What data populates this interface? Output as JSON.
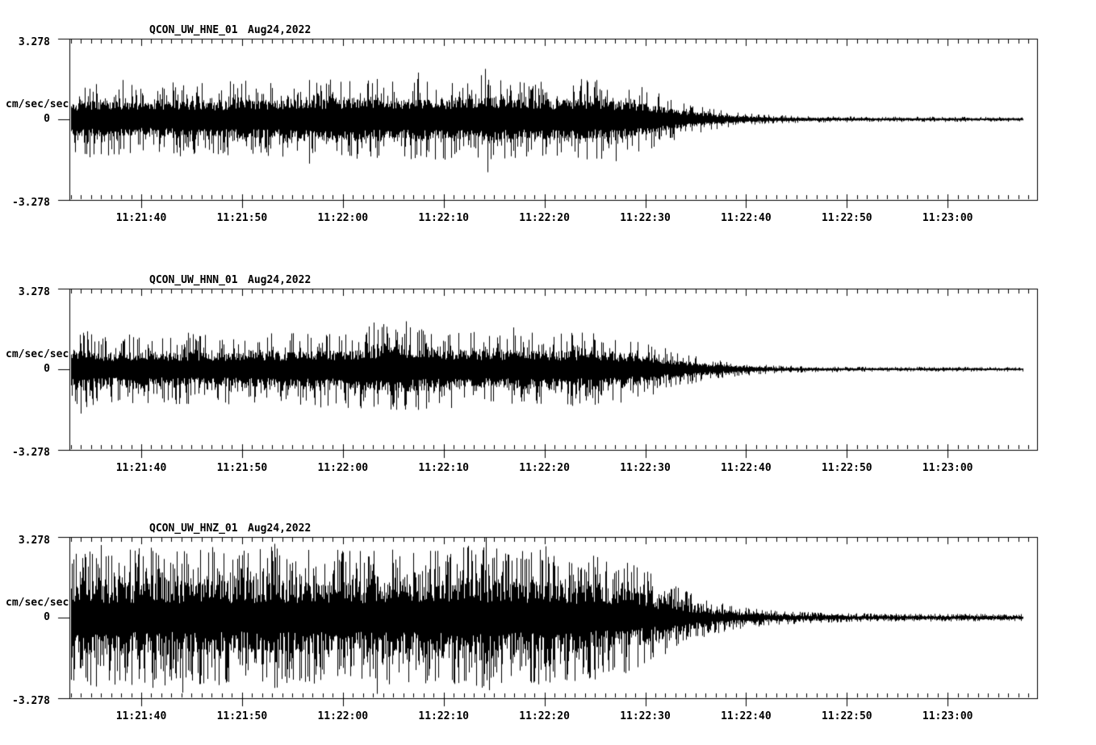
{
  "page": {
    "background": "#ffffff",
    "ink_color": "#000000"
  },
  "chart_data": {
    "type": "line",
    "kind": "three-component seismogram (acceleration waveforms)",
    "station": "QCON",
    "network": "UW",
    "location_code": "01",
    "date": "Aug24,2022",
    "grid": "off",
    "legend": "none",
    "y_axis": {
      "unit": "cm/sec/sec",
      "max_label": "3.278",
      "zero_label": "0",
      "min_label": "-3.278",
      "ylim": [
        -3.278,
        3.278
      ]
    },
    "x_axis": {
      "tick_labels": [
        "11:21:40",
        "11:21:50",
        "11:22:00",
        "11:22:10",
        "11:22:20",
        "11:22:30",
        "11:22:40",
        "11:22:50",
        "11:23:00"
      ],
      "minor_tick_seconds": 1,
      "major_tick_seconds": 10,
      "window_start": "11:21:33",
      "window_end": "11:23:09",
      "window_length_seconds": 96
    },
    "panels": [
      {
        "channel": "HNE",
        "title": "QCON_UW_HNE_01",
        "date": "Aug24,2022",
        "seed": 20220824,
        "trace_start_s": 0.15,
        "trace_end_s": 94.55,
        "texture": {
          "core": 0.45,
          "hair_prob": 0.4,
          "big_prob": 0.05
        },
        "envelope": [
          [
            0,
            1.35
          ],
          [
            2,
            1.55
          ],
          [
            5,
            1.45
          ],
          [
            8,
            1.35
          ],
          [
            11,
            1.55
          ],
          [
            14,
            1.45
          ],
          [
            17,
            1.65
          ],
          [
            20,
            1.55
          ],
          [
            23,
            1.75
          ],
          [
            26,
            1.65
          ],
          [
            29,
            1.8
          ],
          [
            32,
            1.6
          ],
          [
            35,
            1.75
          ],
          [
            38,
            1.65
          ],
          [
            41,
            1.9
          ],
          [
            44,
            1.7
          ],
          [
            47,
            1.6
          ],
          [
            50,
            1.7
          ],
          [
            53,
            1.6
          ],
          [
            56,
            1.45
          ],
          [
            58,
            1.15
          ],
          [
            60,
            0.85
          ],
          [
            62,
            0.6
          ],
          [
            64,
            0.42
          ],
          [
            66,
            0.3
          ],
          [
            68,
            0.22
          ],
          [
            70,
            0.17
          ],
          [
            74,
            0.13
          ],
          [
            80,
            0.11
          ],
          [
            96,
            0.1
          ]
        ],
        "spikes": [
          [
            5.3,
            1.6
          ],
          [
            23.8,
            -1.8
          ],
          [
            34.6,
            1.9
          ],
          [
            41.2,
            2.05
          ],
          [
            41.5,
            -2.15
          ],
          [
            54.2,
            -1.7
          ]
        ]
      },
      {
        "channel": "HNN",
        "title": "QCON_UW_HNN_01",
        "date": "Aug24,2022",
        "seed": 7151623,
        "trace_start_s": 0.15,
        "trace_end_s": 94.55,
        "texture": {
          "core": 0.42,
          "hair_prob": 0.4,
          "big_prob": 0.05
        },
        "envelope": [
          [
            0,
            1.7
          ],
          [
            1.5,
            1.8
          ],
          [
            3,
            1.35
          ],
          [
            6,
            1.45
          ],
          [
            9,
            1.35
          ],
          [
            12,
            1.5
          ],
          [
            15,
            1.4
          ],
          [
            18,
            1.55
          ],
          [
            21,
            1.45
          ],
          [
            24,
            1.6
          ],
          [
            27,
            1.5
          ],
          [
            30,
            1.85
          ],
          [
            33,
            1.9
          ],
          [
            36,
            1.6
          ],
          [
            39,
            1.7
          ],
          [
            42,
            1.55
          ],
          [
            45,
            1.65
          ],
          [
            48,
            1.5
          ],
          [
            51,
            1.55
          ],
          [
            54,
            1.4
          ],
          [
            57,
            1.2
          ],
          [
            59,
            0.9
          ],
          [
            61,
            0.65
          ],
          [
            63,
            0.48
          ],
          [
            65,
            0.35
          ],
          [
            67,
            0.26
          ],
          [
            69,
            0.19
          ],
          [
            72,
            0.14
          ],
          [
            78,
            0.11
          ],
          [
            96,
            0.09
          ]
        ],
        "spikes": [
          [
            1.1,
            -1.8
          ],
          [
            24.9,
            -1.55
          ],
          [
            30.2,
            1.9
          ],
          [
            33.4,
            1.95
          ],
          [
            44.0,
            1.7
          ]
        ]
      },
      {
        "channel": "HNZ",
        "title": "QCON_UW_HNZ_01",
        "date": "Aug24,2022",
        "seed": 90210331,
        "trace_start_s": 0.15,
        "trace_end_s": 94.55,
        "texture": {
          "core": 0.38,
          "hair_prob": 0.62,
          "big_prob": 0.1
        },
        "envelope": [
          [
            0,
            2.5
          ],
          [
            2,
            2.9
          ],
          [
            5,
            2.7
          ],
          [
            8,
            2.95
          ],
          [
            11,
            2.75
          ],
          [
            14,
            2.9
          ],
          [
            17,
            2.7
          ],
          [
            20,
            2.95
          ],
          [
            23,
            2.75
          ],
          [
            26,
            2.9
          ],
          [
            29,
            2.7
          ],
          [
            32,
            2.85
          ],
          [
            35,
            2.7
          ],
          [
            38,
            2.9
          ],
          [
            41,
            3.0
          ],
          [
            44,
            2.75
          ],
          [
            47,
            2.85
          ],
          [
            50,
            2.65
          ],
          [
            53,
            2.5
          ],
          [
            56,
            2.2
          ],
          [
            58,
            1.75
          ],
          [
            60,
            1.3
          ],
          [
            62,
            0.95
          ],
          [
            64,
            0.68
          ],
          [
            66,
            0.5
          ],
          [
            68,
            0.38
          ],
          [
            70,
            0.3
          ],
          [
            73,
            0.24
          ],
          [
            77,
            0.19
          ],
          [
            84,
            0.16
          ],
          [
            96,
            0.14
          ]
        ],
        "spikes": [
          [
            3.1,
            2.95
          ],
          [
            11.2,
            -3.05
          ],
          [
            20.3,
            3.0
          ],
          [
            30.5,
            -3.1
          ],
          [
            41.3,
            3.27
          ],
          [
            41.6,
            -2.95
          ],
          [
            47.2,
            2.9
          ]
        ]
      }
    ]
  }
}
